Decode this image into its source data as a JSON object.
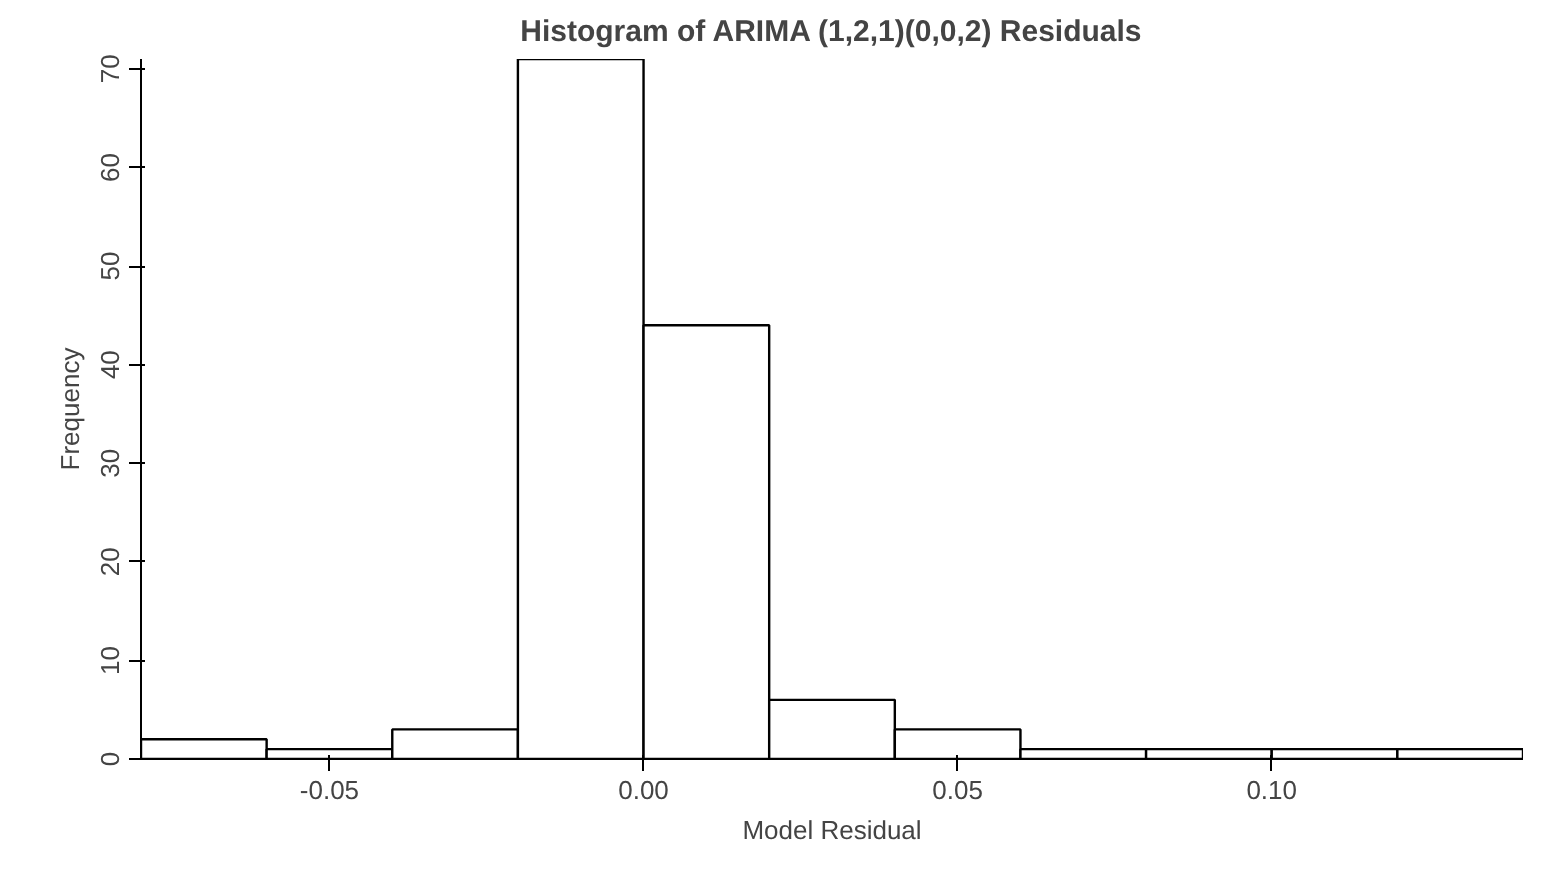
{
  "chart_data": {
    "type": "histogram",
    "title": "Histogram of ARIMA (1,2,1)(0,0,2) Residuals",
    "xlabel": "Model Residual",
    "ylabel": "Frequency",
    "bins": [
      -0.08,
      -0.06,
      -0.04,
      -0.02,
      0.0,
      0.02,
      0.04,
      0.06,
      0.08,
      0.1,
      0.12,
      0.14
    ],
    "values": [
      2,
      1,
      3,
      71,
      44,
      6,
      3,
      1,
      1,
      1,
      1
    ],
    "color": "#ffffff",
    "xlim": [
      -0.08,
      0.14
    ],
    "ylim": [
      0,
      71
    ],
    "xticks": [
      {
        "value": -0.05,
        "label": "-0.05"
      },
      {
        "value": 0,
        "label": "0.00"
      },
      {
        "value": 0.05,
        "label": "0.05"
      },
      {
        "value": 0.1,
        "label": "0.10"
      }
    ],
    "yticks": [
      0,
      10,
      20,
      30,
      40,
      50,
      60,
      70
    ],
    "grid": false
  }
}
